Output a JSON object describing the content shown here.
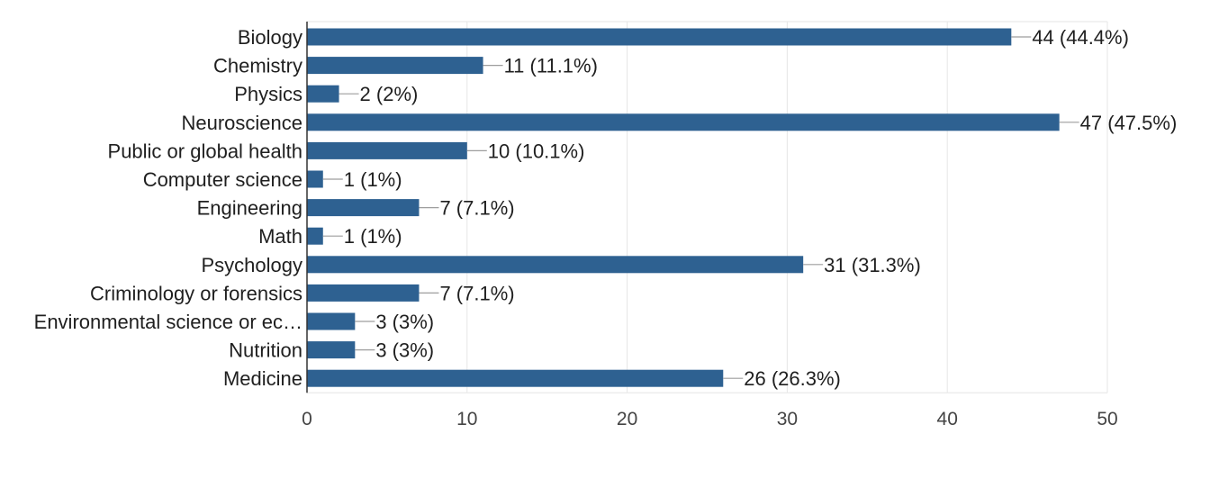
{
  "chart_data": {
    "type": "bar",
    "orientation": "horizontal",
    "categories": [
      "Biology",
      "Chemistry",
      "Physics",
      "Neuroscience",
      "Public or global health",
      "Computer science",
      "Engineering",
      "Math",
      "Psychology",
      "Criminology or forensics",
      "Environmental science or ec…",
      "Nutrition",
      "Medicine"
    ],
    "values": [
      44,
      11,
      2,
      47,
      10,
      1,
      7,
      1,
      31,
      7,
      3,
      3,
      26
    ],
    "value_labels": [
      "44 (44.4%)",
      "11 (11.1%)",
      "2 (2%)",
      "47 (47.5%)",
      "10 (10.1%)",
      "1 (1%)",
      "7 (7.1%)",
      "1 (1%)",
      "31 (31.3%)",
      "7 (7.1%)",
      "3 (3%)",
      "3 (3%)",
      "26 (26.3%)"
    ],
    "xlim": [
      0,
      50
    ],
    "x_ticks": [
      "0",
      "10",
      "20",
      "30",
      "40",
      "50"
    ],
    "x_tick_values": [
      0,
      10,
      20,
      30,
      40,
      50
    ],
    "grid": true,
    "bar_color": "#2e6191",
    "title": "",
    "xlabel": "",
    "ylabel": ""
  }
}
